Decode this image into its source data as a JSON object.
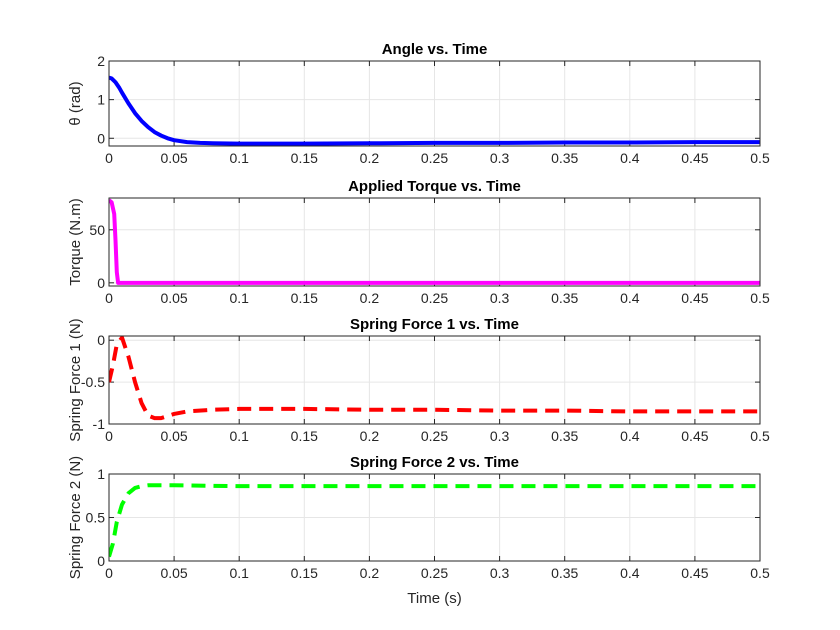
{
  "chart_data": [
    {
      "type": "line",
      "title": "Angle vs. Time",
      "xlabel": "",
      "ylabel": "θ (rad)",
      "xlim": [
        0,
        0.5
      ],
      "ylim": [
        -0.2,
        2
      ],
      "xticks": [
        "0",
        "0.05",
        "0.1",
        "0.15",
        "0.2",
        "0.25",
        "0.3",
        "0.35",
        "0.4",
        "0.45",
        "0.5"
      ],
      "yticks": [
        "0",
        "1",
        "2"
      ],
      "grid": true,
      "series": [
        {
          "color": "#0000ff",
          "style": "solid",
          "x": [
            0,
            0.002,
            0.005,
            0.008,
            0.01,
            0.015,
            0.02,
            0.025,
            0.03,
            0.035,
            0.04,
            0.045,
            0.05,
            0.06,
            0.07,
            0.08,
            0.1,
            0.15,
            0.2,
            0.25,
            0.3,
            0.35,
            0.4,
            0.45,
            0.5
          ],
          "y": [
            1.57,
            1.55,
            1.45,
            1.3,
            1.18,
            0.9,
            0.65,
            0.45,
            0.29,
            0.16,
            0.07,
            0.0,
            -0.05,
            -0.1,
            -0.12,
            -0.13,
            -0.14,
            -0.14,
            -0.13,
            -0.12,
            -0.12,
            -0.11,
            -0.11,
            -0.1,
            -0.1
          ]
        }
      ]
    },
    {
      "type": "line",
      "title": "Applied Torque vs. Time",
      "xlabel": "",
      "ylabel": "Torque (N.m)",
      "xlim": [
        0,
        0.5
      ],
      "ylim": [
        -3,
        80
      ],
      "xticks": [
        "0",
        "0.05",
        "0.1",
        "0.15",
        "0.2",
        "0.25",
        "0.3",
        "0.35",
        "0.4",
        "0.45",
        "0.5"
      ],
      "yticks": [
        "0",
        "50"
      ],
      "grid": true,
      "series": [
        {
          "color": "#ff00ff",
          "style": "solid",
          "x": [
            0,
            0.002,
            0.004,
            0.005,
            0.006,
            0.007,
            0.1,
            0.2,
            0.3,
            0.4,
            0.5
          ],
          "y": [
            78,
            76,
            65,
            40,
            10,
            0,
            0,
            0,
            0,
            0,
            0
          ]
        }
      ]
    },
    {
      "type": "line",
      "title": "Spring Force 1 vs. Time",
      "xlabel": "",
      "ylabel": "Spring Force 1 (N)",
      "xlim": [
        0,
        0.5
      ],
      "ylim": [
        -1,
        0.05
      ],
      "xticks": [
        "0",
        "0.05",
        "0.1",
        "0.15",
        "0.2",
        "0.25",
        "0.3",
        "0.35",
        "0.4",
        "0.45",
        "0.5"
      ],
      "yticks": [
        "0",
        "-0.5",
        "-1"
      ],
      "grid": true,
      "series": [
        {
          "color": "#ff0000",
          "style": "dashed",
          "x": [
            0,
            0.003,
            0.006,
            0.01,
            0.015,
            0.02,
            0.025,
            0.03,
            0.035,
            0.04,
            0.05,
            0.06,
            0.08,
            0.1,
            0.15,
            0.2,
            0.25,
            0.3,
            0.35,
            0.4,
            0.45,
            0.5
          ],
          "y": [
            -0.5,
            -0.3,
            -0.05,
            0.03,
            -0.2,
            -0.5,
            -0.75,
            -0.9,
            -0.93,
            -0.93,
            -0.88,
            -0.85,
            -0.83,
            -0.82,
            -0.82,
            -0.83,
            -0.83,
            -0.84,
            -0.84,
            -0.85,
            -0.85,
            -0.85
          ]
        }
      ]
    },
    {
      "type": "line",
      "title": "Spring Force 2 vs. Time",
      "xlabel": "Time (s)",
      "ylabel": "Spring Force 2 (N)",
      "xlim": [
        0,
        0.5
      ],
      "ylim": [
        0,
        1
      ],
      "xticks": [
        "0",
        "0.05",
        "0.1",
        "0.15",
        "0.2",
        "0.25",
        "0.3",
        "0.35",
        "0.4",
        "0.45",
        "0.5"
      ],
      "yticks": [
        "0",
        "0.5",
        "1"
      ],
      "grid": true,
      "series": [
        {
          "color": "#00ff00",
          "style": "dashed",
          "x": [
            0,
            0.003,
            0.006,
            0.01,
            0.015,
            0.02,
            0.025,
            0.03,
            0.04,
            0.05,
            0.1,
            0.15,
            0.2,
            0.25,
            0.3,
            0.35,
            0.4,
            0.45,
            0.5
          ],
          "y": [
            0.05,
            0.2,
            0.45,
            0.65,
            0.78,
            0.84,
            0.86,
            0.87,
            0.87,
            0.87,
            0.86,
            0.86,
            0.86,
            0.86,
            0.86,
            0.86,
            0.86,
            0.86,
            0.86
          ]
        }
      ]
    }
  ]
}
